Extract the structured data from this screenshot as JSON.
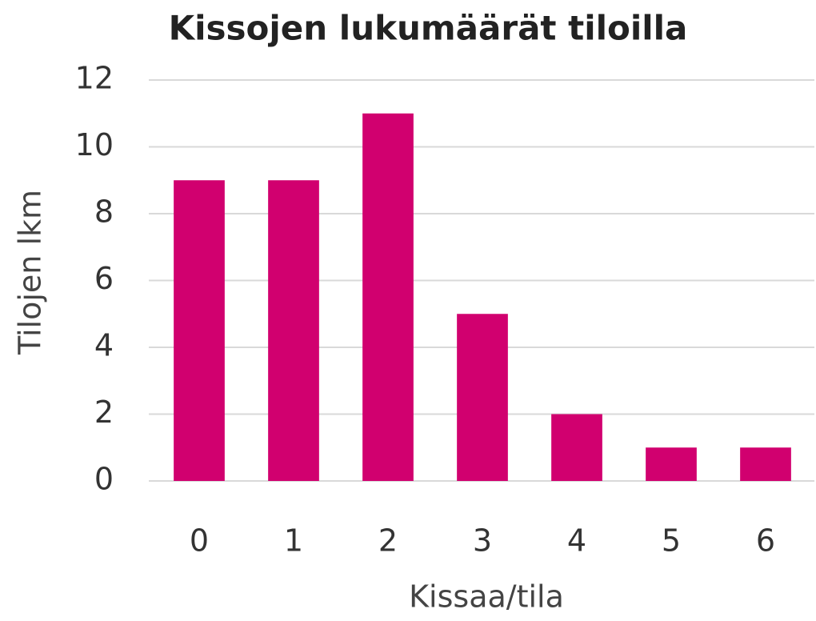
{
  "chart_data": {
    "type": "bar",
    "title": "Kissojen lukumäärät tiloilla",
    "x_label": "Kissaa/tila",
    "y_label": "Tilojen lkm",
    "categories": [
      "0",
      "1",
      "2",
      "3",
      "4",
      "5",
      "6"
    ],
    "values": [
      9,
      9,
      11,
      5,
      2,
      1,
      1
    ],
    "color": "#d1006f",
    "ylim": [
      0,
      12
    ],
    "yticks": [
      0,
      2,
      4,
      6,
      8,
      10,
      12
    ],
    "grid": true
  }
}
